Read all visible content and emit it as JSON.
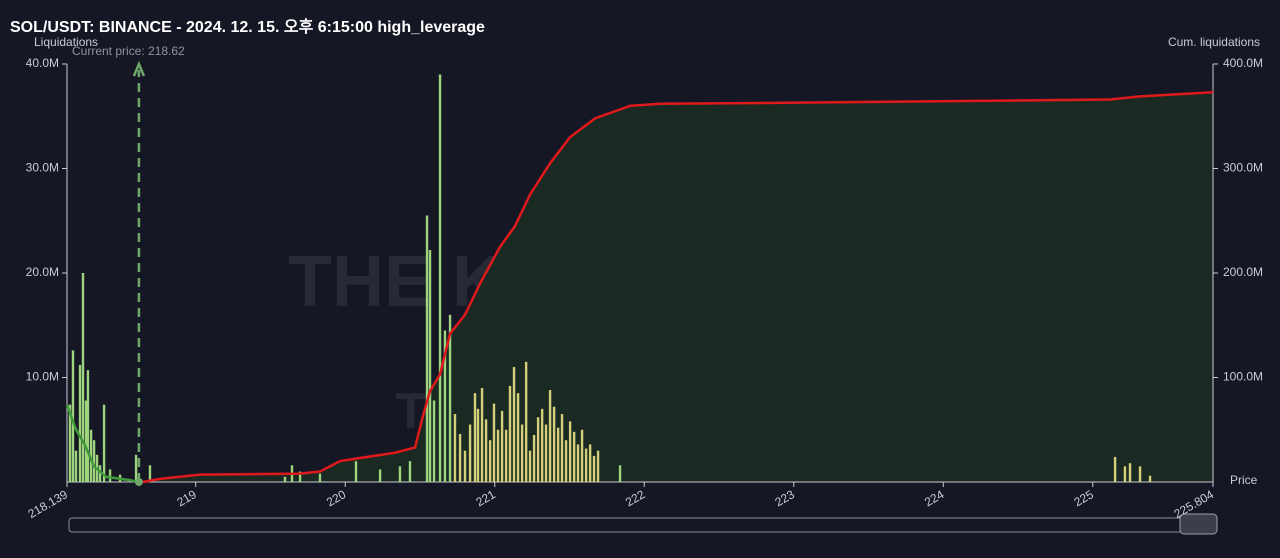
{
  "chart_data": {
    "type": "bar",
    "title": "SOL/USDT: BINANCE - 2024. 12. 15. 오후 6:15:00 high_leverage",
    "y_label": "Liquidations",
    "y2_label": "Cum. liquidations",
    "x_label": "Price",
    "current_price": 218.62,
    "current_price_label": "Current price: 218.62",
    "watermark": "THE KINGFISHER.IO",
    "xlim": [
      218.139,
      225.804
    ],
    "xticks": [
      218.139,
      219,
      220,
      221,
      222,
      223,
      224,
      225,
      225.804
    ],
    "ylim": [
      0,
      40
    ],
    "yticks": [
      {
        "value": 10,
        "label": "10.0M"
      },
      {
        "value": 20,
        "label": "20.0M"
      },
      {
        "value": 30,
        "label": "30.0M"
      },
      {
        "value": 40,
        "label": "40.0M"
      }
    ],
    "y2lim": [
      0,
      400
    ],
    "y2ticks": [
      {
        "value": 100,
        "label": "100.0M"
      },
      {
        "value": 200,
        "label": "200.0M"
      },
      {
        "value": 300,
        "label": "300.0M"
      },
      {
        "value": 400,
        "label": "400.0M"
      }
    ],
    "series": [
      {
        "type": "bar",
        "color": "#9fd47e",
        "x": [
          218.159,
          218.179,
          218.199,
          218.226,
          218.246,
          218.266,
          218.279,
          218.3,
          218.32,
          218.34,
          218.36,
          218.387,
          218.427,
          218.494,
          218.601,
          218.694,
          219.597,
          219.644,
          219.698,
          219.831,
          220.072,
          220.233,
          220.366,
          220.433,
          220.547,
          220.567,
          220.594,
          220.634,
          220.667,
          220.701,
          221.838
        ],
        "values": [
          7.4,
          12.6,
          3,
          11.2,
          20,
          7.8,
          10.7,
          5,
          4,
          2.6,
          1.6,
          7.4,
          1.2,
          0.7,
          2.6,
          1.6,
          0.5,
          1.6,
          1,
          0.8,
          2,
          1.2,
          1.5,
          2,
          25.5,
          22.2,
          7.8,
          39,
          14.5,
          16,
          1.6
        ]
      },
      {
        "type": "bar",
        "color": "#d6cf7a",
        "x": [
          220.734,
          220.768,
          220.801,
          220.835,
          220.868,
          220.888,
          220.915,
          220.942,
          220.969,
          220.995,
          221.022,
          221.049,
          221.076,
          221.102,
          221.129,
          221.156,
          221.183,
          221.21,
          221.236,
          221.263,
          221.29,
          221.317,
          221.343,
          221.37,
          221.397,
          221.424,
          221.45,
          221.477,
          221.504,
          221.531,
          221.557,
          221.584,
          221.611,
          221.638,
          221.664,
          221.691,
          225.149,
          225.215,
          225.249,
          225.316,
          225.383
        ],
        "values": [
          6.5,
          4.6,
          3,
          5.5,
          8.5,
          7,
          9,
          6,
          4,
          7.5,
          5,
          6.8,
          5,
          9.2,
          11,
          8.5,
          5.5,
          11.5,
          3,
          4.5,
          6.2,
          7,
          5.5,
          8.8,
          7.2,
          5.2,
          6.5,
          4,
          5.8,
          4.8,
          3.6,
          5,
          3.2,
          3.6,
          2.5,
          3,
          2.4,
          1.5,
          1.8,
          1.5,
          0.6
        ]
      },
      {
        "type": "line",
        "axis": "y2",
        "color": "#e0191c",
        "fill": "#1b2b22",
        "x": [
          218.647,
          218.761,
          219.029,
          219.698,
          219.831,
          219.965,
          220.099,
          220.333,
          220.467,
          220.514,
          220.567,
          220.634,
          220.701,
          220.801,
          220.902,
          221.035,
          221.136,
          221.236,
          221.37,
          221.504,
          221.671,
          221.906,
          222.106,
          223.042,
          225.116,
          225.316,
          225.804
        ],
        "values": [
          0,
          3,
          7,
          8,
          10,
          20,
          23,
          28,
          33,
          60,
          87,
          103,
          142,
          160,
          190,
          225,
          245,
          275,
          305,
          330,
          348,
          360,
          362,
          363,
          366,
          369,
          373
        ]
      },
      {
        "type": "line",
        "color": "#3f9a3a",
        "x": [
          218.139,
          218.2,
          218.26,
          218.32,
          218.4,
          218.55,
          218.62
        ],
        "values": [
          7.4,
          5,
          3.5,
          1.5,
          0.5,
          0.2,
          0
        ]
      }
    ]
  }
}
